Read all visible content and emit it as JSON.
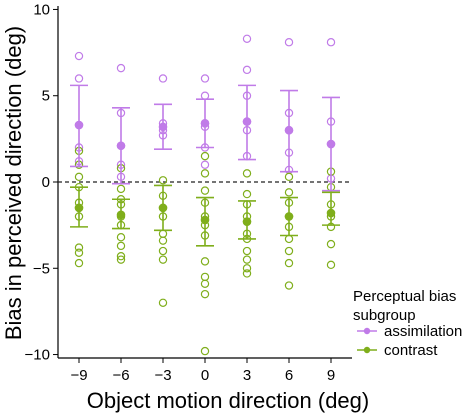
{
  "chart_data": {
    "type": "scatter",
    "xlabel": "Object motion direction (deg)",
    "ylabel": "Bias in perceived direction (deg)",
    "x_ticks": [
      -9,
      -6,
      -3,
      0,
      3,
      6,
      9
    ],
    "x_tick_labels": [
      "−9",
      "−6",
      "−3",
      "0",
      "3",
      "6",
      "9"
    ],
    "y_ticks": [
      -10,
      -5,
      0,
      5,
      10
    ],
    "y_tick_labels": [
      "−10",
      "−5",
      "0",
      "5",
      "10"
    ],
    "xlim": [
      -10.5,
      10.5
    ],
    "ylim": [
      -10.2,
      10.2
    ],
    "reference_line_y": 0,
    "legend": {
      "title_line1": "Perceptual bias",
      "title_line2": "subgroup",
      "position": "bottom-right"
    },
    "series": [
      {
        "name": "assimilation",
        "color": "#c07be8",
        "x": [
          -9,
          -6,
          -3,
          0,
          3,
          6,
          9
        ],
        "mean": [
          3.3,
          2.1,
          3.2,
          3.4,
          3.5,
          3.0,
          2.2
        ],
        "err_upper": [
          5.6,
          4.3,
          4.5,
          4.8,
          5.6,
          5.3,
          4.9
        ],
        "err_lower": [
          0.9,
          -0.1,
          1.9,
          2.0,
          1.3,
          0.6,
          -0.5
        ],
        "points": [
          [
            -9,
            7.3
          ],
          [
            -9,
            6.0
          ],
          [
            -9,
            3.3
          ],
          [
            -9,
            2.0
          ],
          [
            -9,
            1.2
          ],
          [
            -6,
            6.6
          ],
          [
            -6,
            4.0
          ],
          [
            -6,
            2.1
          ],
          [
            -6,
            1.0
          ],
          [
            -6,
            0.3
          ],
          [
            -3,
            6.0
          ],
          [
            -3,
            3.4
          ],
          [
            -3,
            3.0
          ],
          [
            -3,
            2.7
          ],
          [
            0,
            6.0
          ],
          [
            0,
            5.0
          ],
          [
            0,
            3.4
          ],
          [
            0,
            3.2
          ],
          [
            0,
            2.0
          ],
          [
            0,
            1.0
          ],
          [
            3,
            8.3
          ],
          [
            3,
            6.5
          ],
          [
            3,
            5.0
          ],
          [
            3,
            3.5
          ],
          [
            3,
            3.0
          ],
          [
            3,
            1.5
          ],
          [
            6,
            8.1
          ],
          [
            6,
            4.0
          ],
          [
            6,
            3.0
          ],
          [
            6,
            1.7
          ],
          [
            6,
            0.7
          ],
          [
            9,
            8.1
          ],
          [
            9,
            3.5
          ],
          [
            9,
            2.2
          ],
          [
            9,
            0.2
          ]
        ]
      },
      {
        "name": "contrast",
        "color": "#7fae1b",
        "x": [
          -9,
          -6,
          -3,
          0,
          3,
          6,
          9
        ],
        "mean": [
          -1.5,
          -1.9,
          -1.5,
          -2.2,
          -2.3,
          -2.0,
          -1.8
        ],
        "err_upper": [
          -0.3,
          -1.0,
          -0.2,
          -0.9,
          -1.1,
          -0.9,
          -0.6
        ],
        "err_lower": [
          -2.6,
          -2.7,
          -2.8,
          -3.7,
          -3.3,
          -3.1,
          -2.5
        ],
        "points": [
          [
            -9,
            1.8
          ],
          [
            -9,
            1.0
          ],
          [
            -9,
            0.3
          ],
          [
            -9,
            -0.3
          ],
          [
            -9,
            -1.2
          ],
          [
            -9,
            -1.5
          ],
          [
            -9,
            -2.0
          ],
          [
            -9,
            -3.8
          ],
          [
            -9,
            -4.1
          ],
          [
            -9,
            -4.7
          ],
          [
            -6,
            0.8
          ],
          [
            -6,
            -0.4
          ],
          [
            -6,
            -1.0
          ],
          [
            -6,
            -1.3
          ],
          [
            -6,
            -2.0
          ],
          [
            -6,
            -2.5
          ],
          [
            -6,
            -3.2
          ],
          [
            -6,
            -3.7
          ],
          [
            -6,
            -4.3
          ],
          [
            -6,
            -4.5
          ],
          [
            -3,
            0.1
          ],
          [
            -3,
            -0.8
          ],
          [
            -3,
            -1.5
          ],
          [
            -3,
            -2.0
          ],
          [
            -3,
            -3.0
          ],
          [
            -3,
            -3.4
          ],
          [
            -3,
            -4.0
          ],
          [
            -3,
            -4.5
          ],
          [
            -3,
            -7.0
          ],
          [
            0,
            1.5
          ],
          [
            0,
            0.5
          ],
          [
            0,
            -0.5
          ],
          [
            0,
            -1.2
          ],
          [
            0,
            -2.0
          ],
          [
            0,
            -2.5
          ],
          [
            0,
            -3.1
          ],
          [
            0,
            -4.6
          ],
          [
            0,
            -5.5
          ],
          [
            0,
            -5.9
          ],
          [
            0,
            -6.5
          ],
          [
            0,
            -9.8
          ],
          [
            3,
            0.5
          ],
          [
            3,
            -0.7
          ],
          [
            3,
            -1.3
          ],
          [
            3,
            -2.0
          ],
          [
            3,
            -2.3
          ],
          [
            3,
            -3.0
          ],
          [
            3,
            -3.3
          ],
          [
            3,
            -4.0
          ],
          [
            3,
            -4.5
          ],
          [
            3,
            -5.0
          ],
          [
            3,
            -5.3
          ],
          [
            6,
            0.3
          ],
          [
            6,
            -0.6
          ],
          [
            6,
            -1.2
          ],
          [
            6,
            -2.0
          ],
          [
            6,
            -2.6
          ],
          [
            6,
            -3.3
          ],
          [
            6,
            -4.0
          ],
          [
            6,
            -4.7
          ],
          [
            6,
            -6.0
          ],
          [
            9,
            0.6
          ],
          [
            9,
            -0.3
          ],
          [
            9,
            -1.3
          ],
          [
            9,
            -2.0
          ],
          [
            9,
            -2.6
          ],
          [
            9,
            -3.6
          ],
          [
            9,
            -4.8
          ]
        ]
      }
    ]
  }
}
